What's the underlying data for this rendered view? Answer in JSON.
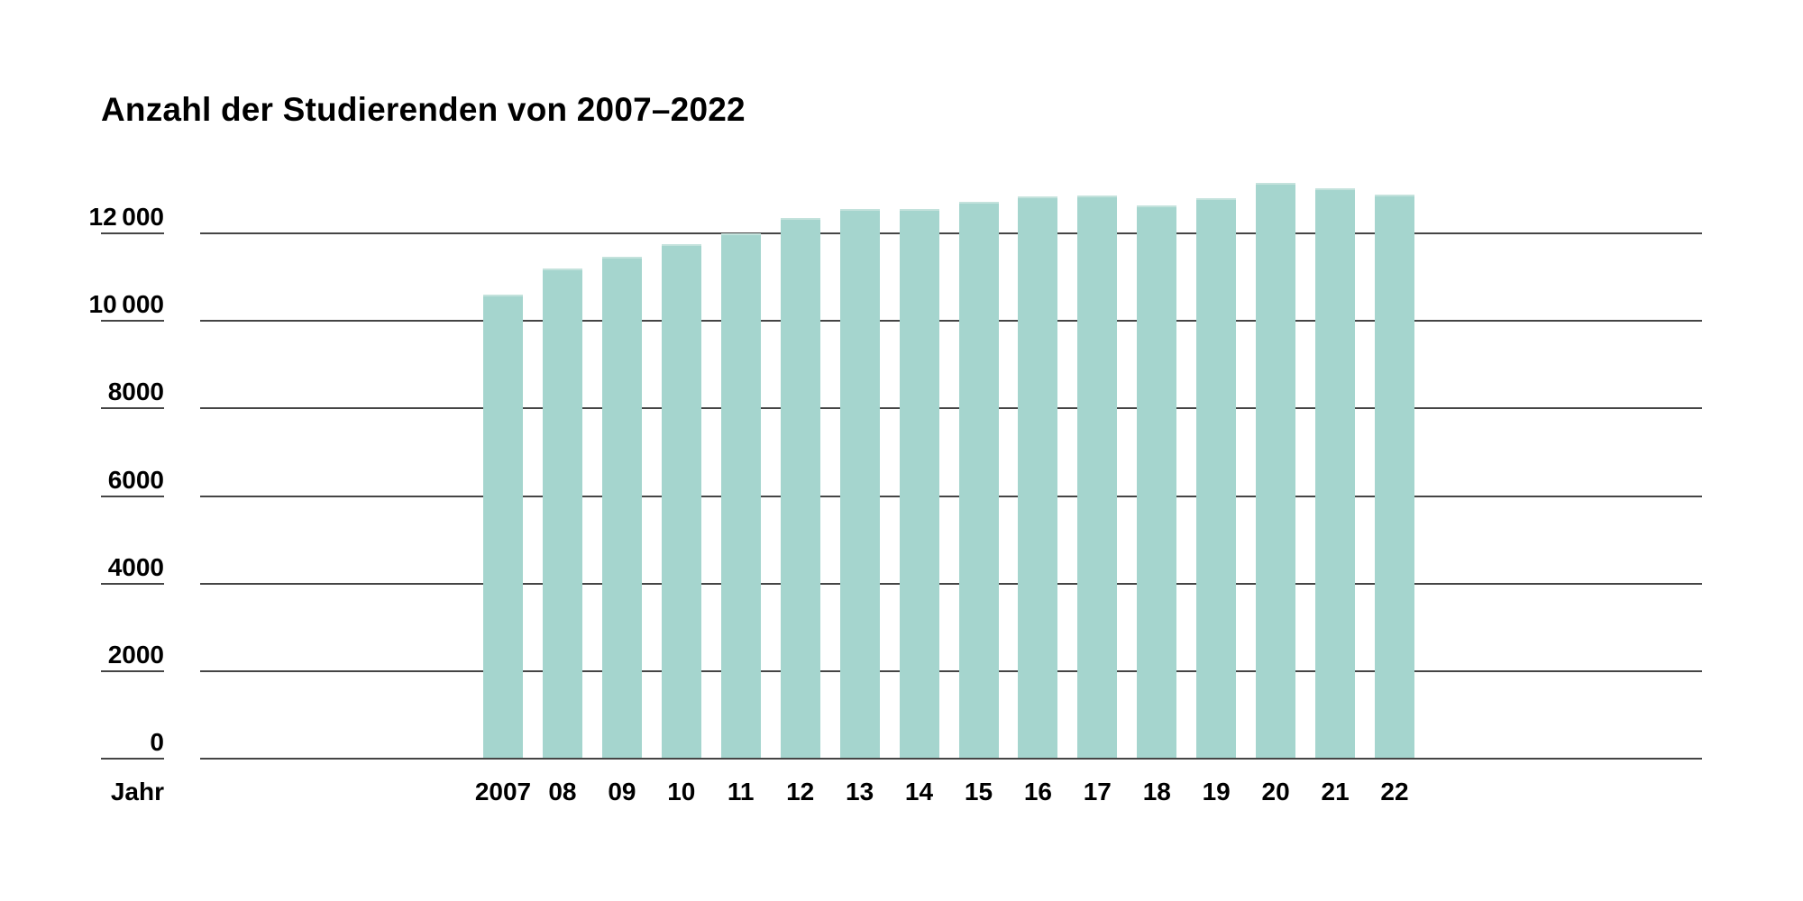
{
  "chart_data": {
    "type": "bar",
    "title": "Anzahl der Studierenden von 2007–2022",
    "xlabel": "Jahr",
    "ylabel": "",
    "categories": [
      "2007",
      "08",
      "09",
      "10",
      "11",
      "12",
      "13",
      "14",
      "15",
      "16",
      "17",
      "18",
      "19",
      "20",
      "21",
      "22"
    ],
    "values": [
      10580,
      11180,
      11440,
      11730,
      11980,
      12330,
      12540,
      12530,
      12700,
      12820,
      12840,
      12620,
      12780,
      13130,
      13010,
      12870
    ],
    "y_ticks": [
      {
        "value": 12000,
        "label": "12 000"
      },
      {
        "value": 10000,
        "label": "10 000"
      },
      {
        "value": 8000,
        "label": "8000"
      },
      {
        "value": 6000,
        "label": "6000"
      },
      {
        "value": 4000,
        "label": "4000"
      },
      {
        "value": 2000,
        "label": "2000"
      },
      {
        "value": 0,
        "label": "0"
      }
    ],
    "ylim": [
      0,
      13500
    ],
    "grid": true,
    "legend_position": "none",
    "bar_color": "#a5d5ce",
    "bar_top_highlight_color": "#c3e2dc",
    "grid_color": "#454545",
    "text_color": "#000000",
    "background_color": "#ffffff"
  }
}
